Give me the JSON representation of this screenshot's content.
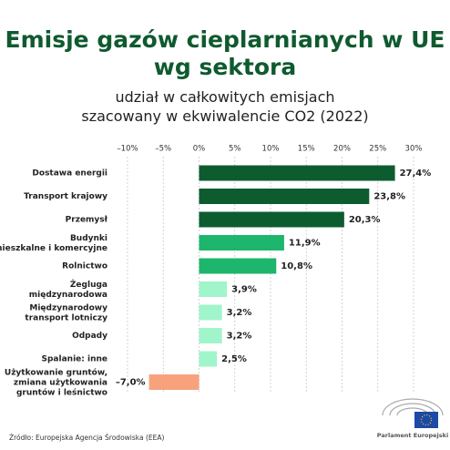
{
  "chart_data": {
    "type": "barh",
    "title": "Emisje gazów cieplarnianych w UE\nwg sektora",
    "subtitle": "udział w całkowitych emisjach\nszacowany w ekwiwalencie CO2 (2022)",
    "categories": [
      "Dostawa energii",
      "Transport krajowy",
      "Przemysł",
      "Budynki\nmieszkalne i komercyjne",
      "Rolnictwo",
      "Żegluga\nmiędzynarodowa",
      "Międzynarodowy\ntransport lotniczy",
      "Odpady",
      "Spalanie: inne",
      "Użytkowanie gruntów,\nzmiana użytkowania\ngruntów i leśnictwo"
    ],
    "values": [
      27.4,
      23.8,
      20.3,
      11.9,
      10.8,
      3.9,
      3.2,
      3.2,
      2.5,
      -7.0
    ],
    "value_labels": [
      "27,4%",
      "23,8%",
      "20,3%",
      "11,9%",
      "10,8%",
      "3,9%",
      "3,2%",
      "3,2%",
      "2,5%",
      "–7,0%"
    ],
    "colors": [
      "#0d5c2f",
      "#0d5c2f",
      "#0d5c2f",
      "#1eb56c",
      "#1eb56c",
      "#a0f5cb",
      "#a0f5cb",
      "#a0f5cb",
      "#a0f5cb",
      "#f7a27d"
    ],
    "xlim": [
      -10,
      30
    ],
    "xticks": [
      {
        "value": -10,
        "label": "–10%"
      },
      {
        "value": -5,
        "label": "–5%"
      },
      {
        "value": 0,
        "label": "0%"
      },
      {
        "value": 5,
        "label": "5%"
      },
      {
        "value": 10,
        "label": "10%"
      },
      {
        "value": 15,
        "label": "15%"
      },
      {
        "value": 20,
        "label": "20%"
      },
      {
        "value": 25,
        "label": "25%"
      },
      {
        "value": 30,
        "label": "30%"
      }
    ],
    "grid": true,
    "source": "Źródło: Europejska Agencja Środowiska (EEA)"
  },
  "logo": {
    "text": "Parlament Europejski"
  }
}
